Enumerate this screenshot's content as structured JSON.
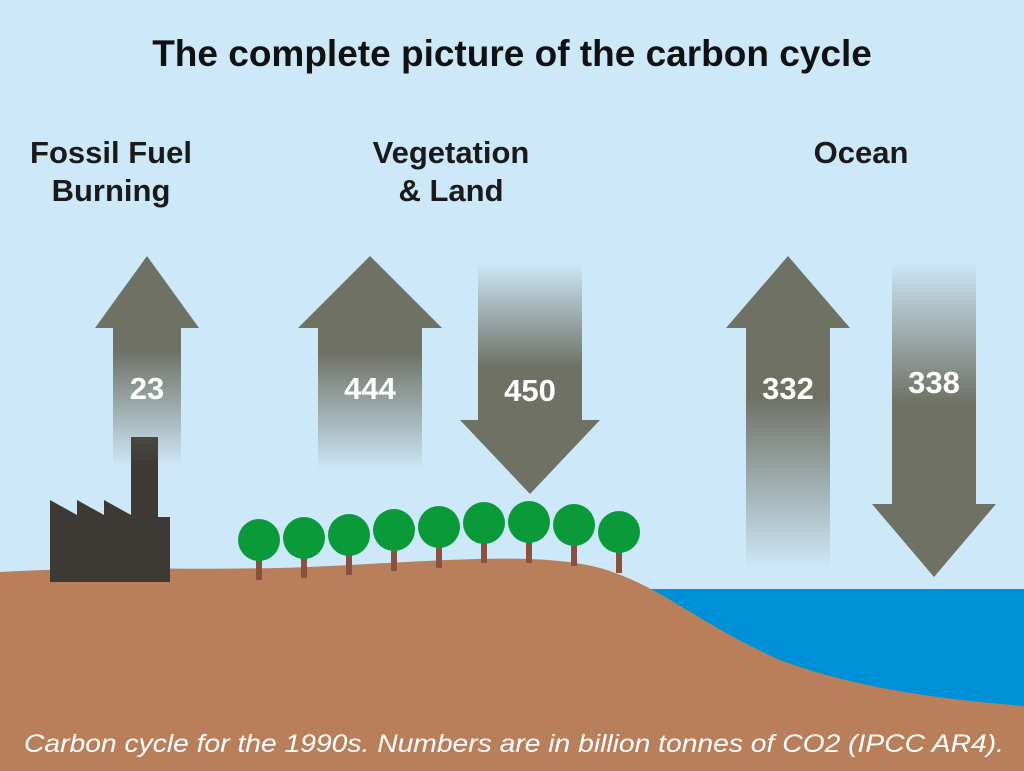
{
  "title": "The complete picture of the carbon cycle",
  "sections": {
    "fossil": {
      "line1": "Fossil Fuel",
      "line2": "Burning"
    },
    "vegetation": {
      "line1": "Vegetation",
      "line2": "& Land"
    },
    "ocean": {
      "line1": "Ocean"
    }
  },
  "flows": {
    "fossil_up": "23",
    "vegetation_up": "444",
    "vegetation_down": "450",
    "ocean_up": "332",
    "ocean_down": "338"
  },
  "caption": "Carbon cycle for the 1990s. Numbers are in billion tonnes of CO2 (IPCC AR4).",
  "colors": {
    "sky": "#cde8f8",
    "arrow": "#6f7165",
    "land": "#b97f5a",
    "ocean": "#0090d8",
    "tree": "#0b9a3a",
    "trunk": "#8a5040",
    "factory": "#3d3a36"
  }
}
